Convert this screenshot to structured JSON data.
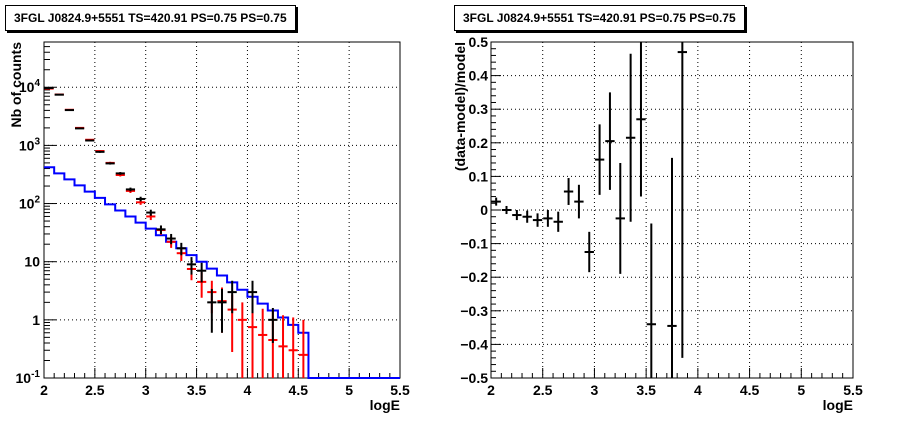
{
  "chart_data": [
    {
      "type": "scatter",
      "title": "3FGL J0824.9+5551 TS=420.91 PS=0.75 PS=0.75",
      "xlabel": "logE",
      "ylabel": "Nb of counts",
      "xlim": [
        2,
        5.5
      ],
      "ylim": [
        0.1,
        60000
      ],
      "yscale": "log",
      "grid": true,
      "x_ticks": [
        "2",
        "2.5",
        "3",
        "3.5",
        "4",
        "4.5",
        "5",
        "5.5"
      ],
      "y_ticks": [
        {
          "value": 0.1,
          "label": "10^-1"
        },
        {
          "value": 1,
          "label": "1"
        },
        {
          "value": 10,
          "label": "10"
        },
        {
          "value": 100,
          "label": "10^2"
        },
        {
          "value": 1000,
          "label": "10^3"
        },
        {
          "value": 10000,
          "label": "10^4"
        }
      ],
      "series": [
        {
          "kind": "step",
          "color": "#0000ff",
          "bin_edges": [
            2.0,
            2.1,
            2.2,
            2.3,
            2.4,
            2.5,
            2.6,
            2.7,
            2.8,
            2.9,
            3.0,
            3.1,
            3.2,
            3.3,
            3.4,
            3.5,
            3.6,
            3.7,
            3.8,
            3.9,
            4.0,
            4.1,
            4.2,
            4.3,
            4.4,
            4.5,
            4.6,
            5.5
          ],
          "values": [
            420,
            330,
            260,
            205,
            160,
            125,
            97,
            76,
            60,
            47,
            37,
            28.5,
            22,
            17,
            13,
            10,
            7.6,
            5.8,
            4.4,
            3.3,
            2.5,
            1.9,
            1.45,
            1.1,
            0.82,
            0.6,
            0.1
          ]
        },
        {
          "kind": "errorbar",
          "color": "#ff0000",
          "x": [
            2.05,
            2.15,
            2.25,
            2.35,
            2.45,
            2.55,
            2.65,
            2.75,
            2.85,
            2.95,
            3.05,
            3.15,
            3.25,
            3.35,
            3.45,
            3.55,
            3.65,
            3.75,
            3.85,
            3.95,
            4.05,
            4.15,
            4.25,
            4.35,
            4.45,
            4.55
          ],
          "y": [
            9500,
            7500,
            4100,
            2000,
            1250,
            800,
            500,
            310,
            165,
            105,
            60,
            35,
            22,
            14,
            7.5,
            4.5,
            3.0,
            2.1,
            1.5,
            1.0,
            0.75,
            0.55,
            0.45,
            0.35,
            0.3,
            0.25
          ],
          "yerr_low": [
            100,
            90,
            65,
            45,
            35,
            28,
            22,
            18,
            13,
            10,
            8,
            6,
            4.7,
            3.7,
            2.7,
            2.1,
            1.7,
            1.5,
            1.22,
            1.0,
            0.72,
            0.52,
            0.42,
            0.3,
            0.25,
            0.22
          ],
          "yerr_high": [
            100,
            90,
            65,
            45,
            35,
            28,
            22,
            18,
            13,
            10,
            8,
            6,
            4.7,
            3.7,
            2.7,
            2.1,
            1.7,
            1.5,
            1.22,
            1.0,
            1.2,
            1.0,
            0.95,
            0.85,
            0.8,
            0.75
          ]
        },
        {
          "kind": "errorbar",
          "color": "#000000",
          "x": [
            2.05,
            2.15,
            2.25,
            2.35,
            2.45,
            2.55,
            2.65,
            2.75,
            2.85,
            2.95,
            3.05,
            3.15,
            3.25,
            3.35,
            3.45,
            3.55,
            3.65,
            3.75,
            3.85,
            3.95,
            4.05,
            4.15,
            4.25,
            4.35,
            4.45,
            4.55
          ],
          "y": [
            9700,
            7450,
            4050,
            1960,
            1215,
            775,
            490,
            330,
            175,
            120,
            70,
            36,
            25,
            17,
            9,
            7,
            2,
            2,
            3,
            0.5,
            3,
            0.5,
            1,
            0.3,
            0.2,
            0.1
          ],
          "yerr_low": [
            100,
            90,
            65,
            45,
            35,
            28,
            22,
            18,
            13,
            11,
            8.4,
            6,
            5,
            4.1,
            3,
            2.6,
            1.4,
            1.4,
            1.7,
            0.4,
            1.7,
            0.4,
            0.6,
            0.2,
            0.1,
            0.01
          ],
          "yerr_high": [
            100,
            90,
            65,
            45,
            35,
            28,
            22,
            18,
            13,
            11,
            8.4,
            6,
            5,
            4.1,
            3,
            2.6,
            1.4,
            1.4,
            1.7,
            0.4,
            1.7,
            0.4,
            0.6,
            0.2,
            0.1,
            0.01
          ],
          "show": [
            true,
            true,
            true,
            true,
            true,
            true,
            true,
            true,
            true,
            true,
            true,
            true,
            true,
            true,
            true,
            true,
            true,
            true,
            true,
            false,
            true,
            false,
            true,
            false,
            false,
            false
          ]
        }
      ]
    },
    {
      "type": "scatter",
      "title": "3FGL J0824.9+5551 TS=420.91 PS=0.75 PS=0.75",
      "xlabel": "logE",
      "ylabel": "(data-model)/model",
      "xlim": [
        2,
        5.5
      ],
      "ylim": [
        -0.5,
        0.5
      ],
      "grid": true,
      "x_ticks": [
        "2",
        "2.5",
        "3",
        "3.5",
        "4",
        "4.5",
        "5",
        "5.5"
      ],
      "y_ticks": [
        "−0.5",
        "−0.4",
        "−0.3",
        "−0.2",
        "−0.1",
        "0",
        "0.1",
        "0.2",
        "0.3",
        "0.4",
        "0.5"
      ],
      "series": [
        {
          "kind": "errorbar",
          "color": "#000000",
          "x": [
            2.05,
            2.15,
            2.25,
            2.35,
            2.45,
            2.55,
            2.65,
            2.75,
            2.85,
            2.95,
            3.05,
            3.15,
            3.25,
            3.35,
            3.45,
            3.55,
            3.75,
            3.85
          ],
          "y": [
            0.025,
            0.0,
            -0.015,
            -0.02,
            -0.03,
            -0.025,
            -0.035,
            0.055,
            0.025,
            -0.125,
            0.15,
            0.205,
            -0.025,
            0.215,
            0.27,
            -0.34,
            -0.345,
            0.47
          ],
          "yerr": [
            0.012,
            0.012,
            0.015,
            0.018,
            0.02,
            0.025,
            0.03,
            0.04,
            0.05,
            0.06,
            0.105,
            0.145,
            0.165,
            0.25,
            0.23,
            0.3,
            0.5,
            0.91
          ]
        }
      ]
    }
  ]
}
